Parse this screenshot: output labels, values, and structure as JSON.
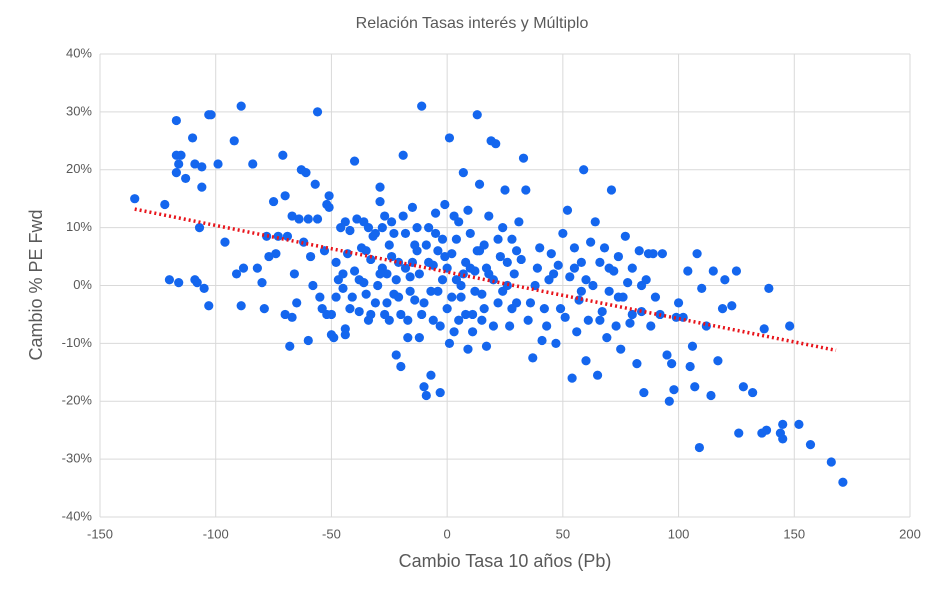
{
  "chart_data": {
    "type": "scatter",
    "title": "Relación  Tasas interés y Múltiplo",
    "xlabel": "Cambio Tasa 10 años (Pb)",
    "ylabel": "Cambio % PE Fwd",
    "color": "#1466ee",
    "grid": true,
    "xlim": [
      -150,
      200
    ],
    "xticks": [
      -150,
      -100,
      -50,
      0,
      50,
      100,
      150,
      200
    ],
    "ylim": [
      -40,
      40
    ],
    "yticks": [
      {
        "value": -40,
        "label": "-40%"
      },
      {
        "value": -30,
        "label": "-30%"
      },
      {
        "value": -20,
        "label": "-20%"
      },
      {
        "value": -10,
        "label": "-10%"
      },
      {
        "value": 0,
        "label": "0%"
      },
      {
        "value": 10,
        "label": "10%"
      },
      {
        "value": 20,
        "label": "20%"
      },
      {
        "value": 30,
        "label": "30%"
      },
      {
        "value": 40,
        "label": "40%"
      }
    ],
    "x": [
      -135,
      -122,
      -120,
      -117,
      -117,
      -116,
      -117,
      -115,
      -116,
      -113,
      -110,
      -109,
      -109,
      -108,
      -107,
      -106,
      -106,
      -105,
      -103,
      -102,
      -103,
      -99,
      -96,
      -92,
      -91,
      -89,
      -89,
      -88,
      -84,
      -82,
      -80,
      -79,
      -78,
      -77,
      -75,
      -74,
      -73,
      -71,
      -70,
      -70,
      -69,
      -68,
      -67,
      -67,
      -66,
      -65,
      -64,
      -63,
      -62,
      -61,
      -60,
      -60,
      -59,
      -58,
      -57,
      -56,
      -56,
      -55,
      -54,
      -53,
      -52,
      -51,
      -51,
      -50,
      -50,
      -49,
      -48,
      -47,
      -46,
      -45,
      -44,
      -44,
      -43,
      -42,
      -41,
      -40,
      -40,
      -39,
      -38,
      -37,
      -36,
      -35,
      -34,
      -33,
      -32,
      -31,
      -30,
      -29,
      -29,
      -28,
      -27,
      -26,
      -25,
      -24,
      -23,
      -22,
      -21,
      -20,
      -19,
      -18,
      -17,
      -16,
      -15,
      -14,
      -13,
      -12,
      -11,
      -10,
      -9,
      -8,
      -7,
      -6,
      -5,
      -4,
      -3,
      -2,
      -1,
      0,
      1,
      2,
      3,
      4,
      5,
      6,
      7,
      8,
      9,
      10,
      11,
      12,
      13,
      14,
      15,
      16,
      17,
      18,
      19,
      20,
      21,
      22,
      23,
      24,
      25,
      26,
      27,
      28,
      29,
      30,
      31,
      32,
      33,
      34,
      35,
      37,
      38,
      40,
      41,
      43,
      44,
      45,
      47,
      48,
      49,
      50,
      51,
      52,
      53,
      54,
      55,
      56,
      57,
      58,
      59,
      60,
      61,
      62,
      63,
      64,
      65,
      66,
      67,
      68,
      69,
      70,
      71,
      72,
      73,
      74,
      75,
      76,
      77,
      78,
      79,
      80,
      82,
      83,
      84,
      85,
      86,
      87,
      88,
      89,
      90,
      92,
      93,
      95,
      96,
      97,
      98,
      99,
      100,
      102,
      104,
      105,
      106,
      107,
      108,
      109,
      110,
      112,
      114,
      115,
      117,
      119,
      120,
      123,
      125,
      126,
      128,
      132,
      136,
      137,
      138,
      139,
      144,
      145,
      145,
      148,
      152,
      157,
      166,
      171,
      -28,
      -26,
      -24,
      -22,
      -20,
      -18,
      -16,
      -14,
      -12,
      -10,
      -8,
      -6,
      -4,
      -2,
      0,
      2,
      4,
      6,
      8,
      10,
      12,
      14,
      16,
      18,
      20,
      22,
      24,
      26,
      28,
      30,
      -35,
      -33,
      -31,
      -29,
      -27,
      -25,
      -23,
      -21,
      -19,
      -17,
      -15,
      -13,
      -11,
      -9,
      -7,
      -5,
      -3,
      -1,
      1,
      3,
      5,
      7,
      9,
      11,
      13,
      15,
      17,
      -45,
      -42,
      -38,
      -36,
      -34,
      -44,
      -48,
      -52,
      36,
      39,
      42,
      46,
      55,
      58,
      60,
      66,
      70,
      74,
      80,
      84
    ],
    "values": [
      15,
      14,
      1,
      28.5,
      22.5,
      21,
      19.5,
      22.5,
      0.5,
      18.5,
      25.5,
      21,
      1,
      0.5,
      10,
      17,
      20.5,
      -0.5,
      29.5,
      29.5,
      -3.5,
      21,
      7.5,
      25,
      2,
      31,
      -3.5,
      3,
      21,
      3,
      0.5,
      -4,
      8.5,
      5,
      14.5,
      5.5,
      8.5,
      22.5,
      15.5,
      -5,
      8.5,
      -10.5,
      12,
      -5.5,
      2,
      -3,
      11.5,
      20,
      7.5,
      19.5,
      -9.5,
      11.5,
      5,
      0,
      17.5,
      30,
      11.5,
      -2,
      -4,
      6,
      14,
      13.5,
      15.5,
      -8.5,
      -5,
      -9,
      4,
      1,
      10,
      -0.5,
      -7.5,
      -8.5,
      5.5,
      9.5,
      -2,
      21.5,
      2.5,
      11.5,
      -4.5,
      6.5,
      0.5,
      -1.5,
      10,
      4.5,
      8.5,
      -3,
      0,
      17,
      14.5,
      10,
      -5,
      2,
      7,
      11,
      -1.5,
      -12,
      4,
      -14,
      22.5,
      9,
      -6,
      1.5,
      13.5,
      -2.5,
      6,
      -9,
      31,
      -17.5,
      -19,
      10,
      -15.5,
      3.5,
      12.5,
      -1,
      -18.5,
      8,
      14,
      -4,
      25.5,
      5.5,
      -8,
      1,
      11,
      -2,
      19.5,
      4,
      -11,
      9,
      -5,
      2.5,
      29.5,
      17.5,
      -1.5,
      7,
      -10.5,
      12,
      25,
      1,
      24.5,
      -3,
      5,
      10,
      16.5,
      0,
      -7,
      8,
      2,
      -3,
      11,
      4.5,
      22,
      16.5,
      -6,
      -12.5,
      0,
      6.5,
      -9.5,
      -7,
      1,
      5.5,
      -10,
      3.5,
      -4,
      9,
      -5.5,
      13,
      1.5,
      -16,
      6.5,
      -8,
      -2.5,
      4,
      20,
      -13,
      -6,
      7.5,
      0,
      11,
      -15.5,
      4,
      -4.5,
      6.5,
      -9,
      -1,
      16.5,
      2.5,
      -7,
      5,
      -11,
      -2,
      8.5,
      0.5,
      -6.5,
      3,
      -13.5,
      6,
      -4.5,
      -18.5,
      1,
      5.5,
      -7,
      5.5,
      -2,
      -5,
      5.5,
      -12,
      -20,
      -13.5,
      -18,
      -5.5,
      -3,
      -5.5,
      2.5,
      -14,
      -10.5,
      -17.5,
      5.5,
      -28,
      -0.5,
      -7,
      -19,
      2.5,
      -13,
      -4,
      1,
      -3.5,
      2.5,
      -25.5,
      -17.5,
      -18.5,
      -25.5,
      -7.5,
      -25,
      -0.5,
      -25.5,
      -26.5,
      -24,
      -7,
      -24,
      -27.5,
      -30.5,
      -34,
      3,
      -3,
      5,
      1,
      -5,
      3,
      -1,
      7,
      2,
      -3,
      4,
      -6,
      6,
      1,
      3,
      -2,
      8,
      0,
      -5,
      3,
      -1,
      6,
      -4,
      2,
      -7,
      8,
      -1,
      4,
      -4,
      6,
      6,
      -5,
      9,
      2,
      12,
      -6,
      9,
      -2,
      12,
      -9,
      4,
      10,
      -5,
      7,
      -1,
      9,
      -7,
      5,
      -10,
      12,
      -6,
      2,
      13,
      -8,
      6,
      -6,
      3,
      2,
      -4,
      1,
      11,
      -6,
      11,
      -2,
      -5,
      -3,
      3,
      -4,
      2,
      3,
      -1,
      1,
      -6,
      3,
      -2,
      -5,
      0
    ],
    "trendline": {
      "x": [
        -135,
        168
      ],
      "values": [
        13.2,
        -11.2
      ],
      "color": "#e8141b"
    }
  }
}
